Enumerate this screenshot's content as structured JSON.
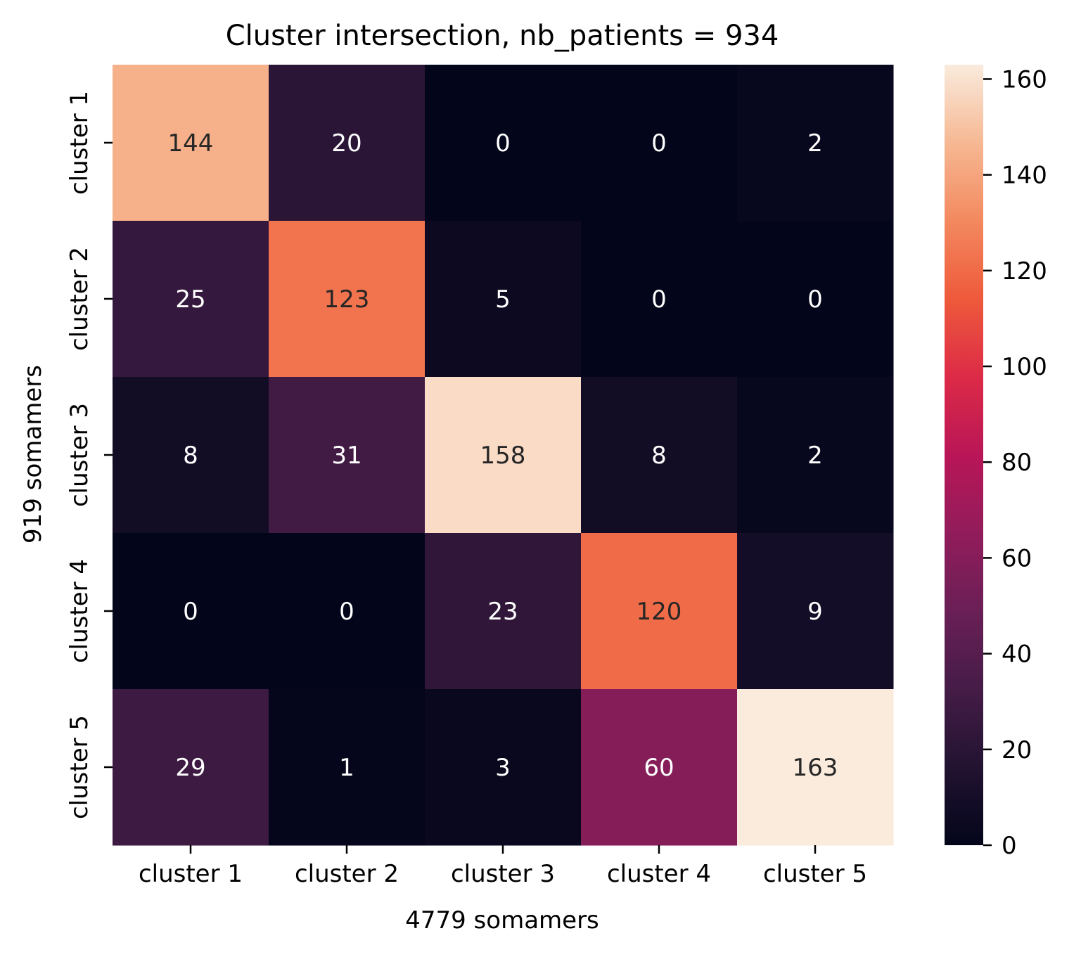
{
  "chart_data": {
    "type": "heatmap",
    "title": "Cluster intersection, nb_patients = 934",
    "xlabel": "4779 somamers",
    "ylabel": "919 somamers",
    "x_categories": [
      "cluster 1",
      "cluster 2",
      "cluster 3",
      "cluster 4",
      "cluster 5"
    ],
    "y_categories": [
      "cluster 1",
      "cluster 2",
      "cluster 3",
      "cluster 4",
      "cluster 5"
    ],
    "values": [
      [
        144,
        20,
        0,
        0,
        2
      ],
      [
        25,
        123,
        5,
        0,
        0
      ],
      [
        8,
        31,
        158,
        8,
        2
      ],
      [
        0,
        0,
        23,
        120,
        9
      ],
      [
        29,
        1,
        3,
        60,
        163
      ]
    ],
    "colorbar": {
      "min": 0,
      "max": 163,
      "ticks": [
        0,
        20,
        40,
        60,
        80,
        100,
        120,
        140,
        160
      ],
      "colormap": "rocket"
    },
    "annotation_colors": {
      "dark": "#262626",
      "light": "#ffffff"
    },
    "grid": false,
    "legend": "colorbar-right"
  }
}
